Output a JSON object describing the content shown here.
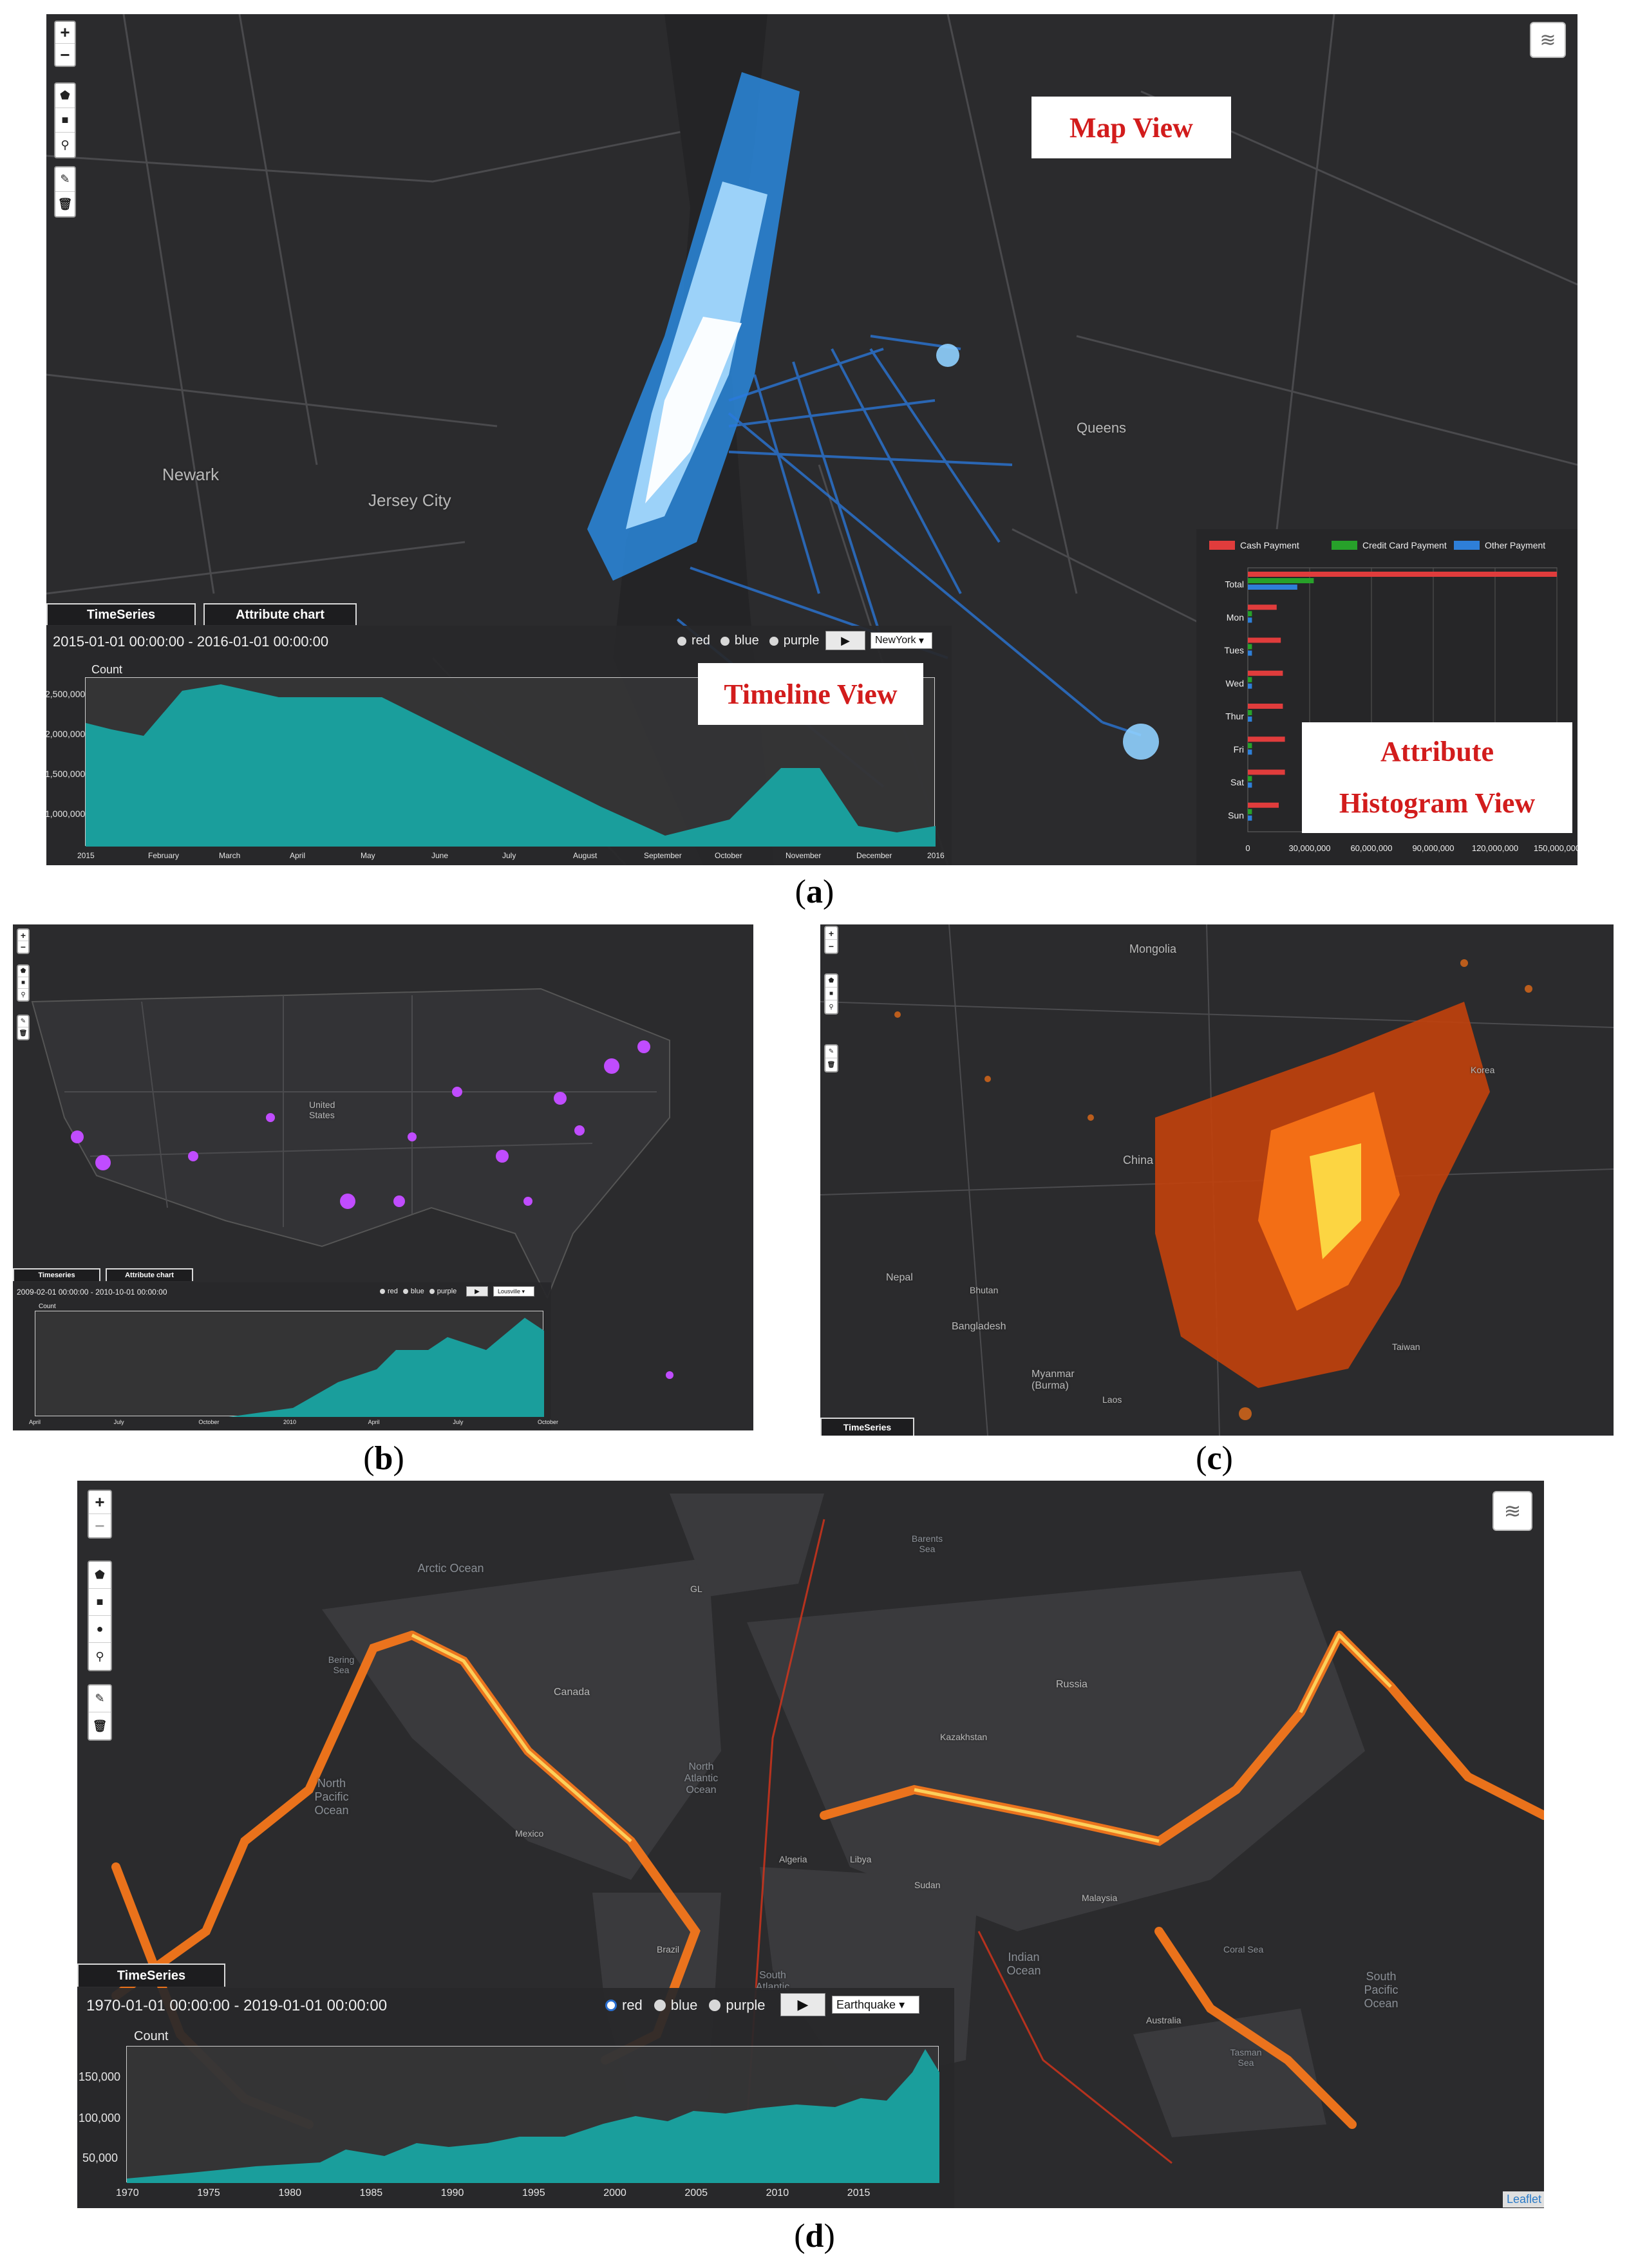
{
  "captions": {
    "a": "a",
    "b": "b",
    "c": "c",
    "d": "d"
  },
  "panel_a": {
    "overlays": {
      "map_view": "Map View",
      "timeline_view": "Timeline View",
      "attribute_view_line1": "Attribute",
      "attribute_view_line2": "Histogram View"
    },
    "tabs": {
      "timeseries": "TimeSeries",
      "attribute": "Attribute chart"
    },
    "range": "2015-01-01 00:00:00 - 2016-01-01 00:00:00",
    "radio": {
      "red": "red",
      "blue": "blue",
      "purple": "purple"
    },
    "dataset": "NewYork",
    "count_label": "Count",
    "place_labels": [
      "Newark",
      "Jersey City",
      "Queens"
    ],
    "histogram": {
      "legend": [
        "Cash Payment",
        "Credit Card Payment",
        "Other Payment"
      ],
      "legend_colors": [
        "#e03c3c",
        "#27a12a",
        "#2e7fd8"
      ],
      "categories": [
        "Total",
        "Mon",
        "Tues",
        "Wed",
        "Thur",
        "Fri",
        "Sat",
        "Sun"
      ],
      "xticks": [
        "0",
        "30,000,000",
        "60,000,000",
        "90,000,000",
        "120,000,000",
        "150,000,000"
      ]
    },
    "chart_data": {
      "type": "area",
      "ylabel": "Count",
      "yticks": [
        "2,500,000",
        "2,000,000",
        "1,500,000",
        "1,000,000"
      ],
      "xticks": [
        "2015",
        "February",
        "March",
        "April",
        "May",
        "June",
        "July",
        "August",
        "September",
        "October",
        "November",
        "December",
        "2016"
      ],
      "color": "#1a9e9c"
    }
  },
  "panel_b": {
    "tabs": {
      "timeseries": "Timeseries",
      "attribute": "Attribute chart"
    },
    "range": "2009-02-01 00:00:00 - 2010-10-01 00:00:00",
    "radio": {
      "red": "red",
      "blue": "blue",
      "purple": "purple"
    },
    "dataset": "Lousville",
    "count_label": "Count",
    "place_labels": [
      "United States"
    ],
    "xticks": [
      "April",
      "July",
      "October",
      "2010",
      "April",
      "July",
      "October"
    ]
  },
  "panel_c": {
    "tabs": {
      "timeseries": "TimeSeries"
    },
    "place_labels": [
      "Mongolia",
      "China",
      "Nepal",
      "Bhutan",
      "Bangladesh",
      "Myanmar (Burma)",
      "Laos",
      "Taiwan",
      "Korea"
    ]
  },
  "panel_d": {
    "tabs": {
      "timeseries": "TimeSeries"
    },
    "range": "1970-01-01 00:00:00 - 2019-01-01 00:00:00",
    "radio": {
      "red": "red",
      "blue": "blue",
      "purple": "purple"
    },
    "dataset": "Earthquake",
    "count_label": "Count",
    "attribution": "Leaflet",
    "ocean_labels": [
      "Arctic Ocean",
      "North Pacific Ocean",
      "North Atlantic Ocean",
      "Indian Ocean",
      "South Atlantic",
      "South Pacific Ocean",
      "Coral Sea",
      "Tasman Sea",
      "Bering Sea",
      "Barents Sea"
    ],
    "land_labels": [
      "Russia",
      "Canada",
      "Mexico",
      "Brazil",
      "Australia",
      "Algeria",
      "Libya",
      "Sudan",
      "Kazakhstan",
      "Malaysia",
      "GL"
    ],
    "chart_data": {
      "type": "area",
      "ylabel": "Count",
      "yticks": [
        "150,000",
        "100,000",
        "50,000"
      ],
      "xticks": [
        "1970",
        "1975",
        "1980",
        "1985",
        "1990",
        "1995",
        "2000",
        "2005",
        "2010",
        "2015"
      ],
      "color": "#1a9e9c"
    }
  }
}
